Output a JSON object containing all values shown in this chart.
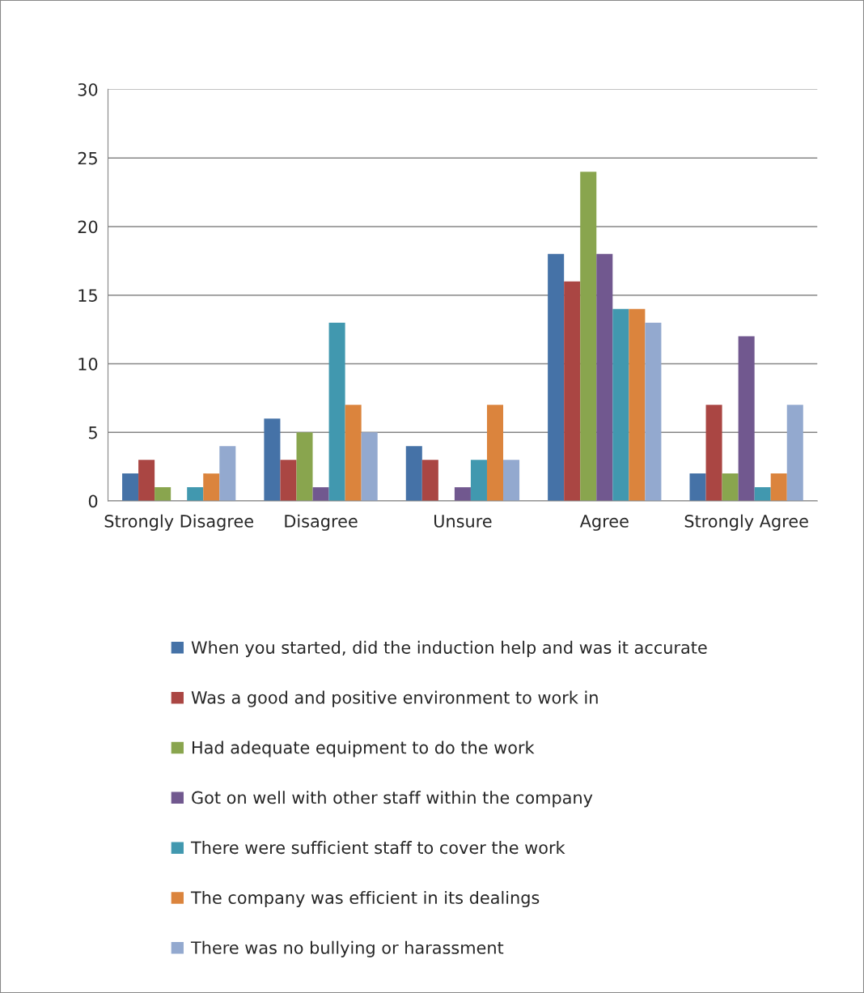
{
  "chart_data": {
    "type": "bar",
    "categories": [
      "Strongly Disagree",
      "Disagree",
      "Unsure",
      "Agree",
      "Strongly Agree"
    ],
    "series": [
      {
        "name": "When you started, did the induction help and was it accurate",
        "color": "#4572a7",
        "values": [
          2,
          6,
          4,
          18,
          2
        ]
      },
      {
        "name": "Was a good and positive environment to work in",
        "color": "#aa4643",
        "values": [
          3,
          3,
          3,
          16,
          7
        ]
      },
      {
        "name": "Had adequate equipment to do the work",
        "color": "#89a54e",
        "values": [
          1,
          5,
          0,
          24,
          2
        ]
      },
      {
        "name": "Got on well with other staff within the company",
        "color": "#71588f",
        "values": [
          0,
          1,
          1,
          18,
          12
        ]
      },
      {
        "name": "There were sufficient staff to cover the work",
        "color": "#4198af",
        "values": [
          1,
          13,
          3,
          14,
          1
        ]
      },
      {
        "name": "The company was efficient in its dealings",
        "color": "#db843d",
        "values": [
          2,
          7,
          7,
          14,
          2
        ]
      },
      {
        "name": "There was no bullying or harassment",
        "color": "#93a9cf",
        "values": [
          4,
          5,
          3,
          13,
          7
        ]
      }
    ],
    "ylim": [
      0,
      30
    ],
    "yticks": [
      0,
      5,
      10,
      15,
      20,
      25,
      30
    ],
    "grid": "y",
    "legend": "bottom"
  }
}
